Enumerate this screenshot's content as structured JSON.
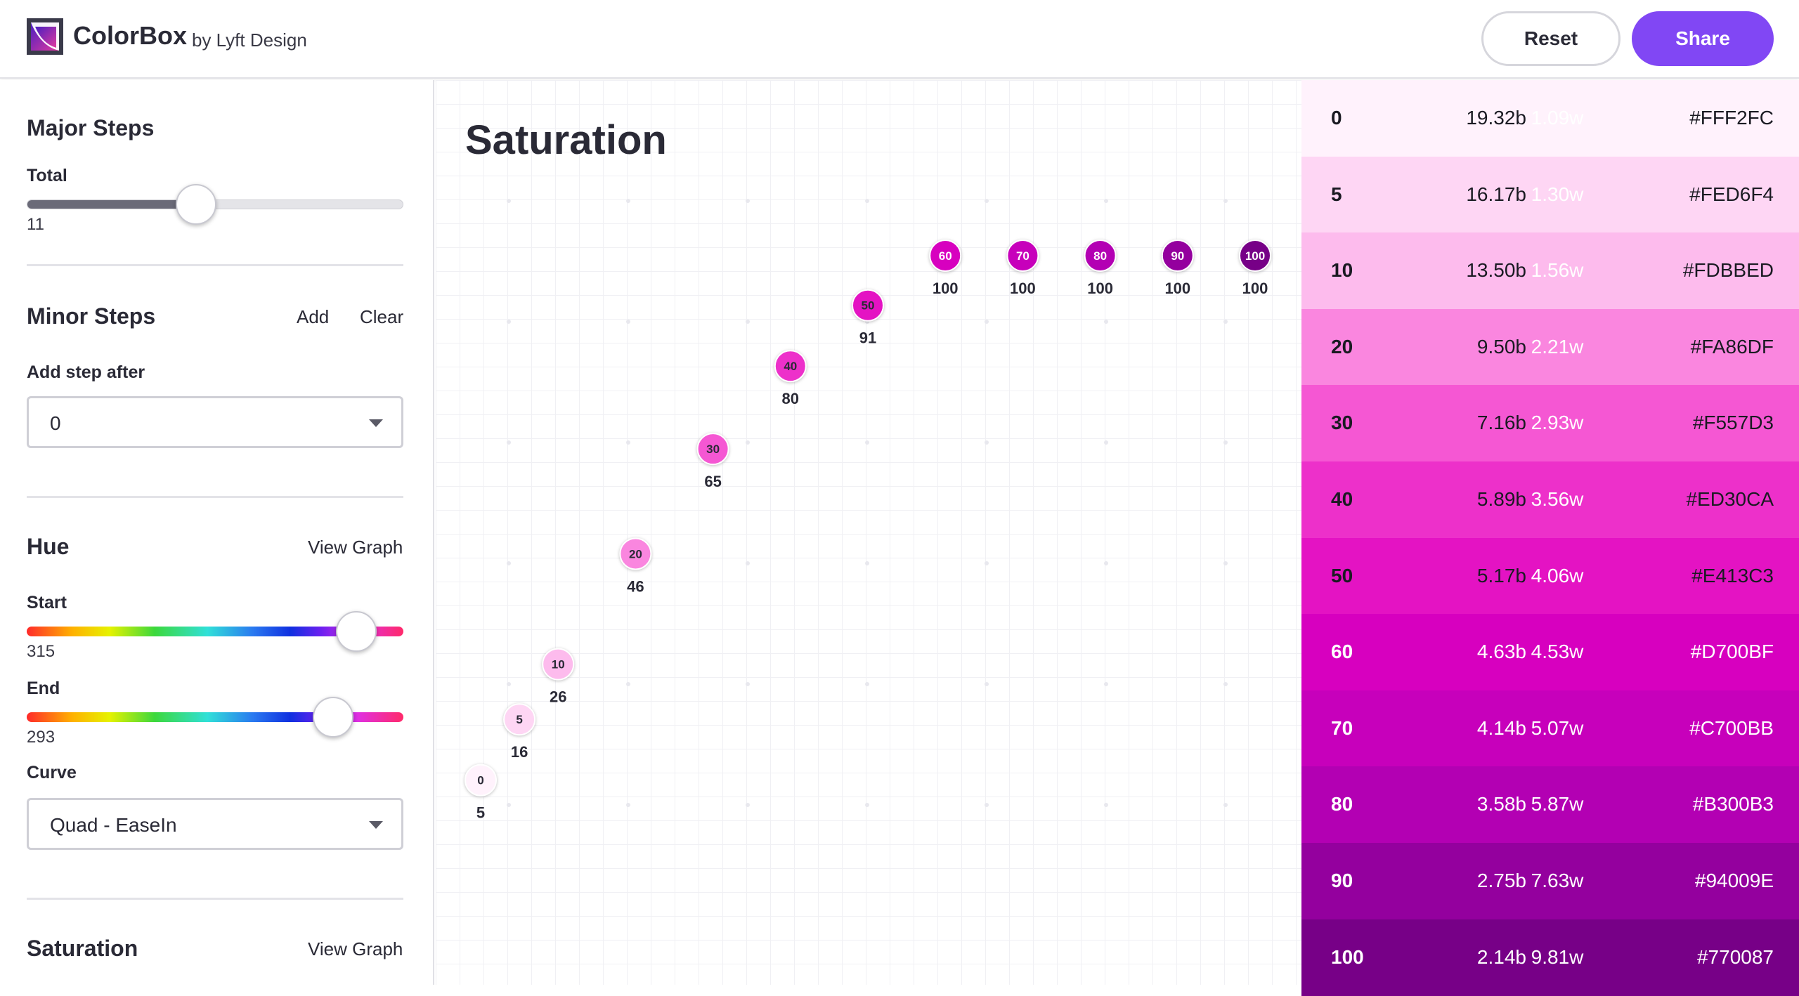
{
  "header": {
    "brand": "ColorBox",
    "brand_sub": "by Lyft Design",
    "reset_label": "Reset",
    "share_label": "Share"
  },
  "colors": {
    "accent": "#8147F4"
  },
  "sidebar": {
    "major_steps": {
      "title": "Major Steps",
      "total_label": "Total",
      "total_value": "11",
      "total_fraction": 0.45
    },
    "minor_steps": {
      "title": "Minor Steps",
      "add_label": "Add",
      "clear_label": "Clear",
      "add_after_label": "Add step after",
      "add_after_value": "0"
    },
    "hue": {
      "title": "Hue",
      "view_graph_label": "View Graph",
      "start_label": "Start",
      "start_value": "315",
      "start_fraction": 0.875,
      "end_label": "End",
      "end_value": "293",
      "end_fraction": 0.814,
      "curve_label": "Curve",
      "curve_value": "Quad - EaseIn"
    },
    "saturation": {
      "title": "Saturation",
      "view_graph_label": "View Graph"
    }
  },
  "graph": {
    "title": "Saturation",
    "points": [
      {
        "step": "0",
        "value": 5,
        "color": "#FFF2FC",
        "text": "#2a2a36"
      },
      {
        "step": "5",
        "value": 16,
        "color": "#FED6F4",
        "text": "#2a2a36"
      },
      {
        "step": "10",
        "value": 26,
        "color": "#FDBBED",
        "text": "#2a2a36"
      },
      {
        "step": "20",
        "value": 46,
        "color": "#FA86DF",
        "text": "#2a2a36"
      },
      {
        "step": "30",
        "value": 65,
        "color": "#F557D3",
        "text": "#2a2a36"
      },
      {
        "step": "40",
        "value": 80,
        "color": "#ED30CA",
        "text": "#2a2a36"
      },
      {
        "step": "50",
        "value": 91,
        "color": "#E413C3",
        "text": "#2a2a36"
      },
      {
        "step": "60",
        "value": 100,
        "color": "#D700BF",
        "text": "#ffffff"
      },
      {
        "step": "70",
        "value": 100,
        "color": "#C700BB",
        "text": "#ffffff"
      },
      {
        "step": "80",
        "value": 100,
        "color": "#B300B3",
        "text": "#ffffff"
      },
      {
        "step": "90",
        "value": 100,
        "color": "#94009E",
        "text": "#ffffff"
      },
      {
        "step": "100",
        "value": 100,
        "color": "#770087",
        "text": "#ffffff"
      }
    ]
  },
  "palette": [
    {
      "step": "0",
      "black": "19.32b",
      "white": "1.09w",
      "hex": "#FFF2FC",
      "bg": "#FFF2FC",
      "fg": "#1a1a22",
      "wfg": "#ffffff"
    },
    {
      "step": "5",
      "black": "16.17b",
      "white": "1.30w",
      "hex": "#FED6F4",
      "bg": "#FED6F4",
      "fg": "#1a1a22",
      "wfg": "#ffffff"
    },
    {
      "step": "10",
      "black": "13.50b",
      "white": "1.56w",
      "hex": "#FDBBED",
      "bg": "#FDBBED",
      "fg": "#1a1a22",
      "wfg": "#ffffff"
    },
    {
      "step": "20",
      "black": "9.50b",
      "white": "2.21w",
      "hex": "#FA86DF",
      "bg": "#FA86DF",
      "fg": "#1a1a22",
      "wfg": "#ffffff"
    },
    {
      "step": "30",
      "black": "7.16b",
      "white": "2.93w",
      "hex": "#F557D3",
      "bg": "#F557D3",
      "fg": "#1a1a22",
      "wfg": "#ffffff"
    },
    {
      "step": "40",
      "black": "5.89b",
      "white": "3.56w",
      "hex": "#ED30CA",
      "bg": "#ED30CA",
      "fg": "#1a1a22",
      "wfg": "#ffffff"
    },
    {
      "step": "50",
      "black": "5.17b",
      "white": "4.06w",
      "hex": "#E413C3",
      "bg": "#E413C3",
      "fg": "#1a1a22",
      "wfg": "#ffffff"
    },
    {
      "step": "60",
      "black": "4.63b",
      "white": "4.53w",
      "hex": "#D700BF",
      "bg": "#D700BF",
      "fg": "#ffffff",
      "wfg": "#ffffff"
    },
    {
      "step": "70",
      "black": "4.14b",
      "white": "5.07w",
      "hex": "#C700BB",
      "bg": "#C700BB",
      "fg": "#ffffff",
      "wfg": "#ffffff"
    },
    {
      "step": "80",
      "black": "3.58b",
      "white": "5.87w",
      "hex": "#B300B3",
      "bg": "#B300B3",
      "fg": "#ffffff",
      "wfg": "#ffffff"
    },
    {
      "step": "90",
      "black": "2.75b",
      "white": "7.63w",
      "hex": "#94009E",
      "bg": "#94009E",
      "fg": "#ffffff",
      "wfg": "#ffffff"
    },
    {
      "step": "100",
      "black": "2.14b",
      "white": "9.81w",
      "hex": "#770087",
      "bg": "#770087",
      "fg": "#ffffff",
      "wfg": "#ffffff"
    }
  ]
}
